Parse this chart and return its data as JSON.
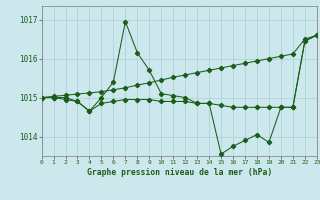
{
  "background_color": "#cde8ec",
  "grid_color": "#a8cdd4",
  "line_color": "#1a5c1a",
  "title": "Graphe pression niveau de la mer (hPa)",
  "xlim": [
    0,
    23
  ],
  "ylim": [
    1013.5,
    1017.35
  ],
  "yticks": [
    1014,
    1015,
    1016,
    1017
  ],
  "xticks": [
    0,
    1,
    2,
    3,
    4,
    5,
    6,
    7,
    8,
    9,
    10,
    11,
    12,
    13,
    14,
    15,
    16,
    17,
    18,
    19,
    20,
    21,
    22,
    23
  ],
  "series": [
    {
      "x": [
        0,
        1,
        2,
        3,
        4,
        5,
        6,
        7,
        8,
        9,
        10,
        11,
        12,
        13,
        14,
        15,
        16,
        17,
        18,
        19,
        20,
        21,
        22,
        23
      ],
      "y": [
        1015.0,
        1015.0,
        1015.0,
        1014.9,
        1014.65,
        1015.0,
        1015.4,
        1016.95,
        1016.15,
        1015.7,
        1015.1,
        1015.05,
        1015.0,
        1014.85,
        1014.85,
        1013.55,
        1013.75,
        1013.9,
        1014.05,
        1013.85,
        1014.75,
        1014.75,
        1016.45,
        1016.6
      ]
    },
    {
      "x": [
        0,
        1,
        2,
        3,
        4,
        5,
        6,
        7,
        8,
        9,
        10,
        11,
        12,
        13,
        14,
        15,
        16,
        17,
        18,
        19,
        20,
        21,
        22,
        23
      ],
      "y": [
        1015.0,
        1015.03,
        1015.06,
        1015.09,
        1015.12,
        1015.15,
        1015.2,
        1015.25,
        1015.32,
        1015.38,
        1015.45,
        1015.52,
        1015.58,
        1015.64,
        1015.7,
        1015.76,
        1015.82,
        1015.88,
        1015.94,
        1016.0,
        1016.06,
        1016.12,
        1016.5,
        1016.6
      ]
    },
    {
      "x": [
        0,
        1,
        2,
        3,
        4,
        5,
        6,
        7,
        8,
        9,
        10,
        11,
        12,
        13,
        14,
        15,
        16,
        17,
        18,
        19,
        20,
        21,
        22,
        23
      ],
      "y": [
        1015.0,
        1015.0,
        1014.95,
        1014.9,
        1014.65,
        1014.85,
        1014.9,
        1014.95,
        1014.95,
        1014.95,
        1014.9,
        1014.9,
        1014.9,
        1014.85,
        1014.85,
        1014.8,
        1014.75,
        1014.75,
        1014.75,
        1014.75,
        1014.75,
        1014.75,
        1016.45,
        1016.6
      ]
    }
  ]
}
